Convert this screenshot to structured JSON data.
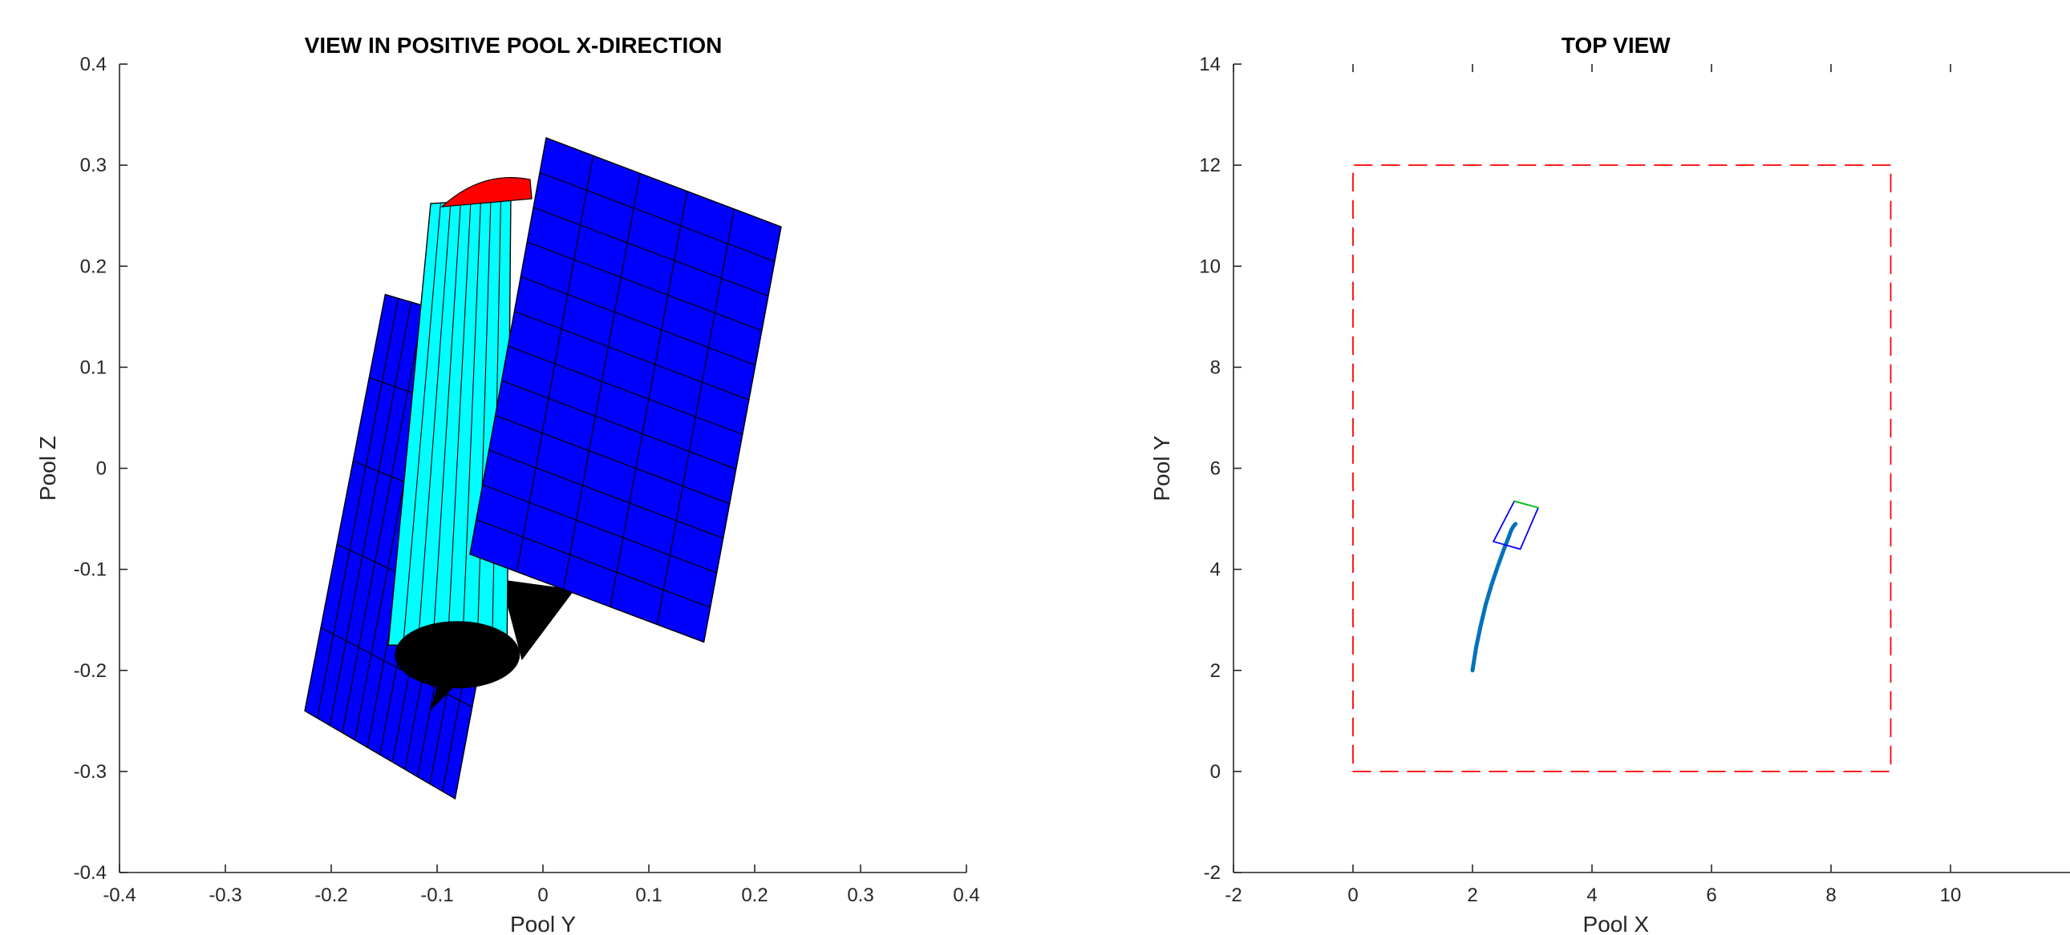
{
  "chart_data": [
    {
      "type": "scatter",
      "title": "VIEW IN POSITIVE POOL X-DIRECTION",
      "xlabel": "Pool Y",
      "ylabel": "Pool Z",
      "xlim": [
        -0.4,
        0.4
      ],
      "ylim": [
        -0.4,
        0.4
      ],
      "xticks": [
        "-0.4",
        "-0.3",
        "-0.2",
        "-0.1",
        "0",
        "0.1",
        "0.2",
        "0.3",
        "0.4"
      ],
      "yticks": [
        "-0.4",
        "-0.3",
        "-0.2",
        "-0.1",
        "0",
        "0.1",
        "0.2",
        "0.3",
        "0.4"
      ],
      "grid": false,
      "content": "3D vehicle model (cylindrical hull with two panel arrays) viewed along positive pool X",
      "colors": {
        "panel": "#0000ff",
        "hull": "#00ffff",
        "cap": "#ff0000",
        "base": "#000000"
      },
      "panel_left_corners_yz": [
        [
          -0.225,
          -0.24
        ],
        [
          -0.149,
          0.172
        ],
        [
          -0.002,
          0.127
        ],
        [
          -0.083,
          -0.327
        ]
      ],
      "panel_right_corners_yz": [
        [
          0.003,
          0.327
        ],
        [
          0.225,
          0.239
        ],
        [
          0.152,
          -0.172
        ],
        [
          -0.069,
          -0.085
        ]
      ]
    },
    {
      "type": "line",
      "title": "TOP VIEW",
      "xlabel": "Pool X",
      "ylabel": "Pool Y",
      "xlim": [
        -2,
        12
      ],
      "ylim": [
        -2,
        14
      ],
      "xticks": [
        "-2",
        "0",
        "2",
        "4",
        "6",
        "8",
        "10"
      ],
      "yticks": [
        "-2",
        "0",
        "2",
        "4",
        "6",
        "8",
        "10",
        "12",
        "14"
      ],
      "grid": false,
      "series": [
        {
          "role": "pool-boundary",
          "style": "dashed",
          "color": "#ff0000",
          "x": [
            0,
            9,
            9,
            0,
            0
          ],
          "y": [
            0,
            0,
            12,
            12,
            0
          ]
        },
        {
          "role": "trajectory",
          "style": "solid",
          "color": "#0072bd",
          "x": [
            2.0,
            2.06,
            2.14,
            2.22,
            2.32,
            2.42,
            2.52,
            2.6,
            2.65,
            2.69,
            2.72
          ],
          "y": [
            2.0,
            2.45,
            2.9,
            3.3,
            3.7,
            4.05,
            4.38,
            4.62,
            4.78,
            4.86,
            4.9
          ]
        },
        {
          "role": "vehicle-outline",
          "style": "solid",
          "color": "#0000ff",
          "x": [
            2.35,
            2.7,
            3.1,
            2.8,
            2.35
          ],
          "y": [
            4.55,
            5.35,
            5.22,
            4.4,
            4.55
          ]
        },
        {
          "role": "vehicle-heading",
          "style": "solid",
          "color": "#00cc00",
          "x": [
            2.7,
            3.1
          ],
          "y": [
            5.35,
            5.22
          ]
        }
      ]
    }
  ]
}
